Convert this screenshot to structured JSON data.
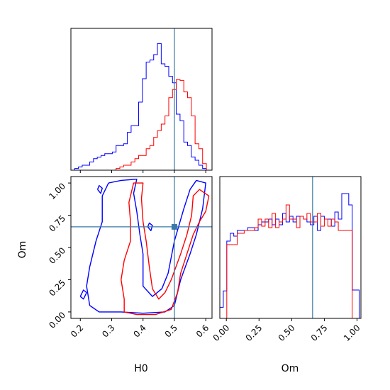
{
  "chart_data": {
    "type": "corner",
    "parameters": [
      "H0",
      "Om"
    ],
    "truth": {
      "H0": 0.5,
      "Om": 0.66
    },
    "colors": {
      "blue_series": "#0000ff",
      "red_series": "#ff0000",
      "truth_line": "#3a78a8"
    },
    "panels": [
      {
        "id": "h0_marginal",
        "type": "histogram",
        "x_param": "H0",
        "xlim": [
          0.17,
          0.62
        ],
        "ylim": [
          0,
          1.0
        ],
        "x_ticks": [
          0.2,
          0.3,
          0.4,
          0.5,
          0.6
        ],
        "bin_edges": [
          0.17,
          0.182,
          0.194,
          0.206,
          0.218,
          0.23,
          0.242,
          0.254,
          0.266,
          0.278,
          0.29,
          0.302,
          0.314,
          0.326,
          0.338,
          0.35,
          0.362,
          0.374,
          0.386,
          0.398,
          0.41,
          0.422,
          0.434,
          0.446,
          0.458,
          0.47,
          0.482,
          0.494,
          0.506,
          0.518,
          0.53,
          0.542,
          0.554,
          0.566,
          0.578,
          0.59,
          0.602
        ],
        "series": [
          {
            "color": "blue",
            "heights": [
              0.0,
              0.012,
              0.023,
              0.035,
              0.035,
              0.058,
              0.081,
              0.092,
              0.104,
              0.116,
              0.116,
              0.128,
              0.174,
              0.174,
              0.186,
              0.267,
              0.314,
              0.314,
              0.48,
              0.645,
              0.762,
              0.777,
              0.815,
              0.893,
              0.75,
              0.732,
              0.662,
              0.616,
              0.395,
              0.349,
              0.198,
              0.174,
              0.093,
              0.07,
              0.035,
              0.012
            ]
          },
          {
            "color": "red",
            "heights": [
              0.0,
              0.0,
              0.0,
              0.0,
              0.0,
              0.0,
              0.0,
              0.0,
              0.0,
              0.0,
              0.0,
              0.0,
              0.012,
              0.023,
              0.035,
              0.035,
              0.058,
              0.081,
              0.104,
              0.104,
              0.151,
              0.174,
              0.232,
              0.279,
              0.325,
              0.383,
              0.511,
              0.569,
              0.639,
              0.633,
              0.552,
              0.511,
              0.383,
              0.186,
              0.151,
              0.046
            ]
          }
        ]
      },
      {
        "id": "h0_om_joint",
        "type": "contour",
        "x_param": "H0",
        "y_param": "Om",
        "xlim": [
          0.17,
          0.62
        ],
        "ylim": [
          -0.05,
          1.05
        ],
        "x_ticks": [
          0.2,
          0.3,
          0.4,
          0.5,
          0.6
        ],
        "y_ticks": [
          0.0,
          0.25,
          0.5,
          0.75,
          1.0
        ],
        "contours": [
          {
            "color": "blue",
            "points": [
              [
                0.29,
                1.0
              ],
              [
                0.27,
                0.9
              ],
              [
                0.27,
                0.7
              ],
              [
                0.25,
                0.55
              ],
              [
                0.23,
                0.35
              ],
              [
                0.22,
                0.2
              ],
              [
                0.23,
                0.05
              ],
              [
                0.26,
                0.0
              ],
              [
                0.33,
                0.0
              ],
              [
                0.4,
                -0.01
              ],
              [
                0.47,
                0.0
              ],
              [
                0.5,
                0.05
              ],
              [
                0.52,
                0.25
              ],
              [
                0.55,
                0.45
              ],
              [
                0.57,
                0.6
              ],
              [
                0.59,
                0.8
              ],
              [
                0.6,
                1.0
              ],
              [
                0.57,
                1.02
              ],
              [
                0.55,
                0.95
              ],
              [
                0.53,
                0.8
              ],
              [
                0.5,
                0.55
              ],
              [
                0.48,
                0.3
              ],
              [
                0.46,
                0.18
              ],
              [
                0.43,
                0.12
              ],
              [
                0.4,
                0.2
              ],
              [
                0.4,
                0.45
              ],
              [
                0.39,
                0.6
              ],
              [
                0.38,
                0.78
              ],
              [
                0.37,
                0.92
              ],
              [
                0.38,
                1.03
              ],
              [
                0.33,
                1.02
              ],
              [
                0.29,
                1.0
              ]
            ]
          },
          {
            "color": "blue",
            "points": [
              [
                0.2,
                0.12
              ],
              [
                0.21,
                0.1
              ],
              [
                0.22,
                0.15
              ],
              [
                0.21,
                0.17
              ],
              [
                0.2,
                0.12
              ]
            ]
          },
          {
            "color": "blue",
            "points": [
              [
                0.255,
                0.95
              ],
              [
                0.265,
                0.92
              ],
              [
                0.27,
                0.96
              ],
              [
                0.26,
                0.98
              ],
              [
                0.255,
                0.95
              ]
            ]
          },
          {
            "color": "blue",
            "points": [
              [
                0.415,
                0.66
              ],
              [
                0.425,
                0.63
              ],
              [
                0.43,
                0.67
              ],
              [
                0.42,
                0.69
              ],
              [
                0.415,
                0.66
              ]
            ]
          },
          {
            "color": "red",
            "points": [
              [
                0.34,
                0.0
              ],
              [
                0.38,
                -0.02
              ],
              [
                0.44,
                -0.02
              ],
              [
                0.49,
                0.02
              ],
              [
                0.51,
                0.15
              ],
              [
                0.52,
                0.3
              ],
              [
                0.54,
                0.45
              ],
              [
                0.56,
                0.6
              ],
              [
                0.58,
                0.7
              ],
              [
                0.6,
                0.78
              ],
              [
                0.61,
                0.9
              ],
              [
                0.58,
                0.95
              ],
              [
                0.56,
                0.9
              ],
              [
                0.555,
                0.75
              ],
              [
                0.54,
                0.6
              ],
              [
                0.52,
                0.45
              ],
              [
                0.49,
                0.25
              ],
              [
                0.47,
                0.15
              ],
              [
                0.45,
                0.1
              ],
              [
                0.43,
                0.18
              ],
              [
                0.42,
                0.35
              ],
              [
                0.41,
                0.55
              ],
              [
                0.4,
                0.7
              ],
              [
                0.395,
                0.88
              ],
              [
                0.4,
                1.0
              ],
              [
                0.37,
                1.0
              ],
              [
                0.355,
                0.85
              ],
              [
                0.36,
                0.7
              ],
              [
                0.36,
                0.55
              ],
              [
                0.34,
                0.4
              ],
              [
                0.33,
                0.25
              ],
              [
                0.34,
                0.1
              ],
              [
                0.34,
                0.0
              ]
            ]
          }
        ]
      },
      {
        "id": "om_marginal",
        "type": "histogram",
        "x_param": "Om",
        "xlim": [
          -0.05,
          1.03
        ],
        "ylim": [
          0,
          1.0
        ],
        "x_ticks": [
          0.0,
          0.25,
          0.5,
          0.75,
          1.0
        ],
        "bin_edges": [
          -0.05,
          -0.0233,
          0.0033,
          0.03,
          0.0567,
          0.0833,
          0.11,
          0.1367,
          0.1633,
          0.19,
          0.2167,
          0.2433,
          0.27,
          0.2967,
          0.3233,
          0.35,
          0.3767,
          0.4033,
          0.43,
          0.4567,
          0.4833,
          0.51,
          0.5367,
          0.5633,
          0.59,
          0.6167,
          0.6433,
          0.67,
          0.6967,
          0.7233,
          0.75,
          0.7767,
          0.8033,
          0.83,
          0.8567,
          0.8833,
          0.91,
          0.9367,
          0.9633,
          0.99,
          1.0167
        ],
        "series": [
          {
            "color": "blue",
            "heights": [
              0.078,
              0.194,
              0.545,
              0.6,
              0.58,
              0.62,
              0.62,
              0.62,
              0.64,
              0.64,
              0.62,
              0.66,
              0.68,
              0.68,
              0.7,
              0.66,
              0.7,
              0.66,
              0.74,
              0.68,
              0.72,
              0.68,
              0.72,
              0.72,
              0.7,
              0.68,
              0.66,
              0.72,
              0.62,
              0.72,
              0.7,
              0.7,
              0.65,
              0.75,
              0.7,
              0.88,
              0.88,
              0.8,
              0.2,
              0.2
            ]
          },
          {
            "color": "red",
            "heights": [
              0.0,
              0.0,
              0.52,
              0.52,
              0.52,
              0.6,
              0.6,
              0.62,
              0.62,
              0.62,
              0.64,
              0.7,
              0.65,
              0.7,
              0.64,
              0.74,
              0.64,
              0.68,
              0.7,
              0.8,
              0.7,
              0.7,
              0.64,
              0.72,
              0.7,
              0.74,
              0.68,
              0.68,
              0.74,
              0.65,
              0.7,
              0.65,
              0.7,
              0.68,
              0.62,
              0.62,
              0.62,
              0.62,
              0.0,
              0.0
            ]
          }
        ]
      }
    ],
    "labels": {
      "H0": "H0",
      "Om": "Om"
    }
  }
}
